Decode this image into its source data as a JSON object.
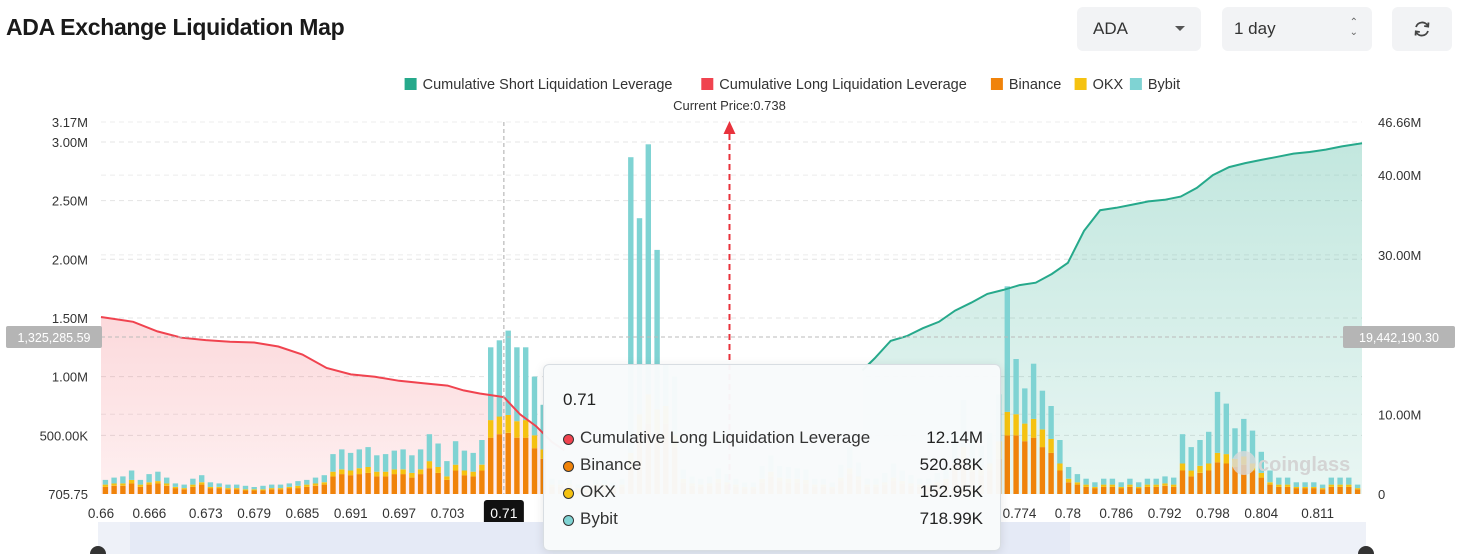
{
  "header": {
    "title": "ADA Exchange Liquidation Map"
  },
  "controls": {
    "coin_select": "ADA",
    "range_select": "1 day",
    "refresh_icon": "refresh-icon"
  },
  "chart_data": {
    "type": "bar",
    "title": "",
    "current_price_label": "Current Price:0.738",
    "current_price": 0.738,
    "x_ticks": [
      "0.66",
      "0.666",
      "0.673",
      "0.679",
      "0.685",
      "0.691",
      "0.697",
      "0.703",
      "0.71",
      "0.774",
      "0.78",
      "0.786",
      "0.792",
      "0.798",
      "0.804",
      "0.811"
    ],
    "x_range": [
      0.66,
      0.8165
    ],
    "left_axis": {
      "ticks": [
        "705.75",
        "500.00K",
        "1.00M",
        "1.50M",
        "2.00M",
        "2.50M",
        "3.00M",
        "3.17M"
      ],
      "ylim": [
        0,
        3170000
      ]
    },
    "right_axis": {
      "ticks": [
        "0",
        "10.00M",
        "30.00M",
        "40.00M",
        "46.66M"
      ],
      "ylim": [
        0,
        46660000
      ]
    },
    "crosshair": {
      "x_label": "0.71",
      "left_label": "1,325,285.59",
      "right_label": "19,442,190.30"
    },
    "watermark": "coinglass",
    "legend": [
      {
        "name": "Cumulative Short Liquidation Leverage",
        "color": "#26a98b"
      },
      {
        "name": "Cumulative Long Liquidation Leverage",
        "color": "#f0434f"
      },
      {
        "name": "Binance",
        "color": "#f0830a"
      },
      {
        "name": "OKX",
        "color": "#f5c211"
      },
      {
        "name": "Bybit",
        "color": "#7fd3d3"
      }
    ],
    "series": [
      {
        "name": "Binance",
        "values": [
          60000,
          70000,
          70000,
          90000,
          60000,
          80000,
          90000,
          70000,
          50000,
          40000,
          60000,
          80000,
          50000,
          50000,
          40000,
          40000,
          30000,
          30000,
          30000,
          40000,
          40000,
          50000,
          50000,
          60000,
          70000,
          80000,
          150000,
          170000,
          160000,
          170000,
          180000,
          150000,
          150000,
          170000,
          170000,
          140000,
          170000,
          220000,
          180000,
          120000,
          200000,
          160000,
          150000,
          200000,
          480000,
          510000,
          520880,
          480000,
          480000,
          390000,
          300000,
          60000,
          60000,
          60000,
          40000,
          40000,
          60000,
          60000,
          50000,
          60000,
          250000,
          480000,
          600000,
          520000,
          600000,
          400000,
          100000,
          70000,
          60000,
          70000,
          100000,
          80000,
          60000,
          50000,
          50000,
          100000,
          150000,
          110000,
          100000,
          100000,
          90000,
          60000,
          60000,
          50000,
          110000,
          170000,
          120000,
          60000,
          60000,
          80000,
          110000,
          90000,
          70000,
          60000,
          60000,
          80000,
          100000,
          200000,
          300000,
          190000,
          160000,
          200000,
          300000,
          500000,
          500000,
          450000,
          480000,
          400000,
          350000,
          200000,
          100000,
          80000,
          60000,
          50000,
          60000,
          60000,
          50000,
          60000,
          50000,
          60000,
          60000,
          70000,
          60000,
          200000,
          150000,
          180000,
          200000,
          270000,
          260000,
          230000,
          250000,
          200000,
          140000,
          80000,
          60000,
          60000,
          50000,
          50000,
          50000,
          40000,
          60000,
          60000,
          60000,
          40000
        ]
      },
      {
        "name": "OKX",
        "values": [
          20000,
          20000,
          20000,
          30000,
          20000,
          20000,
          20000,
          20000,
          10000,
          10000,
          20000,
          20000,
          10000,
          10000,
          10000,
          10000,
          10000,
          10000,
          10000,
          10000,
          10000,
          10000,
          20000,
          20000,
          20000,
          20000,
          40000,
          40000,
          40000,
          50000,
          50000,
          40000,
          40000,
          40000,
          40000,
          40000,
          40000,
          60000,
          50000,
          30000,
          50000,
          40000,
          40000,
          50000,
          150000,
          150000,
          152950,
          140000,
          150000,
          110000,
          80000,
          20000,
          20000,
          20000,
          10000,
          10000,
          20000,
          20000,
          10000,
          20000,
          100000,
          200000,
          250000,
          200000,
          150000,
          100000,
          30000,
          20000,
          20000,
          20000,
          30000,
          20000,
          20000,
          10000,
          10000,
          30000,
          40000,
          30000,
          30000,
          30000,
          30000,
          20000,
          20000,
          10000,
          30000,
          50000,
          30000,
          20000,
          20000,
          20000,
          30000,
          20000,
          20000,
          20000,
          20000,
          20000,
          30000,
          60000,
          100000,
          60000,
          50000,
          60000,
          150000,
          200000,
          180000,
          150000,
          160000,
          150000,
          120000,
          60000,
          30000,
          20000,
          20000,
          10000,
          20000,
          20000,
          10000,
          20000,
          10000,
          20000,
          20000,
          20000,
          20000,
          60000,
          50000,
          60000,
          60000,
          80000,
          80000,
          70000,
          70000,
          60000,
          40000,
          20000,
          20000,
          20000,
          10000,
          10000,
          10000,
          10000,
          20000,
          20000,
          20000,
          10000
        ]
      },
      {
        "name": "Bybit",
        "values": [
          40000,
          50000,
          60000,
          80000,
          40000,
          70000,
          80000,
          50000,
          30000,
          30000,
          50000,
          60000,
          40000,
          30000,
          30000,
          30000,
          30000,
          20000,
          30000,
          30000,
          30000,
          30000,
          40000,
          40000,
          50000,
          60000,
          150000,
          170000,
          150000,
          160000,
          170000,
          140000,
          150000,
          160000,
          170000,
          150000,
          170000,
          230000,
          200000,
          130000,
          200000,
          170000,
          160000,
          210000,
          620000,
          650000,
          718990,
          630000,
          620000,
          500000,
          380000,
          50000,
          40000,
          40000,
          30000,
          30000,
          40000,
          40000,
          40000,
          50000,
          2520000,
          1670000,
          2130000,
          1360000,
          350000,
          500000,
          80000,
          60000,
          50000,
          60000,
          90000,
          70000,
          50000,
          40000,
          40000,
          110000,
          140000,
          100000,
          100000,
          90000,
          90000,
          50000,
          50000,
          40000,
          110000,
          180000,
          120000,
          50000,
          50000,
          80000,
          120000,
          90000,
          70000,
          50000,
          50000,
          80000,
          100000,
          250000,
          400000,
          230000,
          200000,
          260000,
          400000,
          1070000,
          470000,
          300000,
          470000,
          330000,
          280000,
          200000,
          100000,
          70000,
          50000,
          40000,
          50000,
          50000,
          40000,
          50000,
          40000,
          50000,
          50000,
          60000,
          60000,
          250000,
          200000,
          220000,
          270000,
          520000,
          430000,
          260000,
          320000,
          280000,
          180000,
          100000,
          60000,
          60000,
          40000,
          40000,
          40000,
          30000,
          60000,
          60000,
          60000,
          30000
        ]
      },
      {
        "name": "Cumulative Long Liquidation Leverage",
        "x": [
          0.66,
          0.664,
          0.667,
          0.67,
          0.673,
          0.676,
          0.679,
          0.682,
          0.685,
          0.688,
          0.691,
          0.694,
          0.697,
          0.7,
          0.703,
          0.705,
          0.707,
          0.709,
          0.71,
          0.712,
          0.714,
          0.716,
          0.7175
        ],
        "values": [
          22200000,
          21600000,
          20400000,
          19600000,
          19300000,
          19100000,
          19000000,
          18500000,
          17500000,
          15800000,
          15000000,
          14700000,
          14200000,
          13900000,
          13600000,
          13000000,
          12600000,
          12300000,
          12140000,
          10000000,
          8500000,
          6500000,
          5500000
        ]
      },
      {
        "name": "Cumulative Short Liquidation Leverage",
        "x": [
          0.7545,
          0.756,
          0.758,
          0.76,
          0.762,
          0.764,
          0.766,
          0.768,
          0.77,
          0.772,
          0.774,
          0.776,
          0.778,
          0.78,
          0.782,
          0.784,
          0.786,
          0.788,
          0.79,
          0.792,
          0.794,
          0.796,
          0.798,
          0.8,
          0.802,
          0.804,
          0.806,
          0.808,
          0.81,
          0.812,
          0.814,
          0.8165
        ],
        "values": [
          15500000,
          17000000,
          19200000,
          19800000,
          20800000,
          21600000,
          23000000,
          24000000,
          25100000,
          25600000,
          26200000,
          26500000,
          27600000,
          29000000,
          33000000,
          35600000,
          35900000,
          36300000,
          36700000,
          36900000,
          37300000,
          38400000,
          40000000,
          41000000,
          41500000,
          41900000,
          42300000,
          42700000,
          42900000,
          43200000,
          43600000,
          44000000
        ]
      }
    ],
    "tooltip": {
      "title": "0.71",
      "rows": [
        {
          "name": "Cumulative Long Liquidation Leverage",
          "value": "12.14M",
          "color": "#f0434f"
        },
        {
          "name": "Binance",
          "value": "520.88K",
          "color": "#f0830a"
        },
        {
          "name": "OKX",
          "value": "152.95K",
          "color": "#f5c211"
        },
        {
          "name": "Bybit",
          "value": "718.99K",
          "color": "#7fd3d3"
        }
      ]
    }
  }
}
